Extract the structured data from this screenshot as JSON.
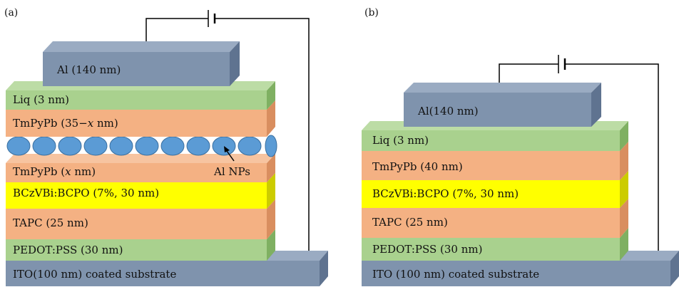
{
  "panel_a": {
    "label": "(a)",
    "layers": {
      "al": "Al (140 nm)",
      "liq": "Liq (3 nm)",
      "tmpypb_top_pre": "TmPyPb (35",
      "tmpypb_top_minus": "−",
      "tmpypb_top_var": "x",
      "tmpypb_top_post": " nm)",
      "tmpypb_bottom_pre": "TmPyPb (",
      "tmpypb_bottom_var": "x",
      "tmpypb_bottom_post": " nm)",
      "bczvbi": "BCzVBi:BCPO (7%, 30 nm)",
      "tapc": "TAPC (25 nm)",
      "pedot": "PEDOT:PSS (30 nm)",
      "ito": "ITO(100 nm) coated substrate"
    },
    "annotation": "Al NPs"
  },
  "panel_b": {
    "label": "(b)",
    "layers": {
      "al": "Al(140 nm)",
      "liq": "Liq (3 nm)",
      "tmpypb": "TmPyPb (40 nm)",
      "bczvbi": "BCzVBi:BCPO (7%, 30 nm)",
      "tapc": "TAPC (25 nm)",
      "pedot": "PEDOT:PSS (30 nm)",
      "ito": "ITO (100 nm) coated substrate"
    }
  },
  "colors": {
    "al": "#7f93ad",
    "liq": "#a9d18e",
    "tmpypb": "#f4b183",
    "bczvbi": "#ffff00",
    "tapc": "#f4b183",
    "pedot": "#a9d18e",
    "ito": "#7f93ad",
    "nanoparticle": "#5b9bd5"
  }
}
